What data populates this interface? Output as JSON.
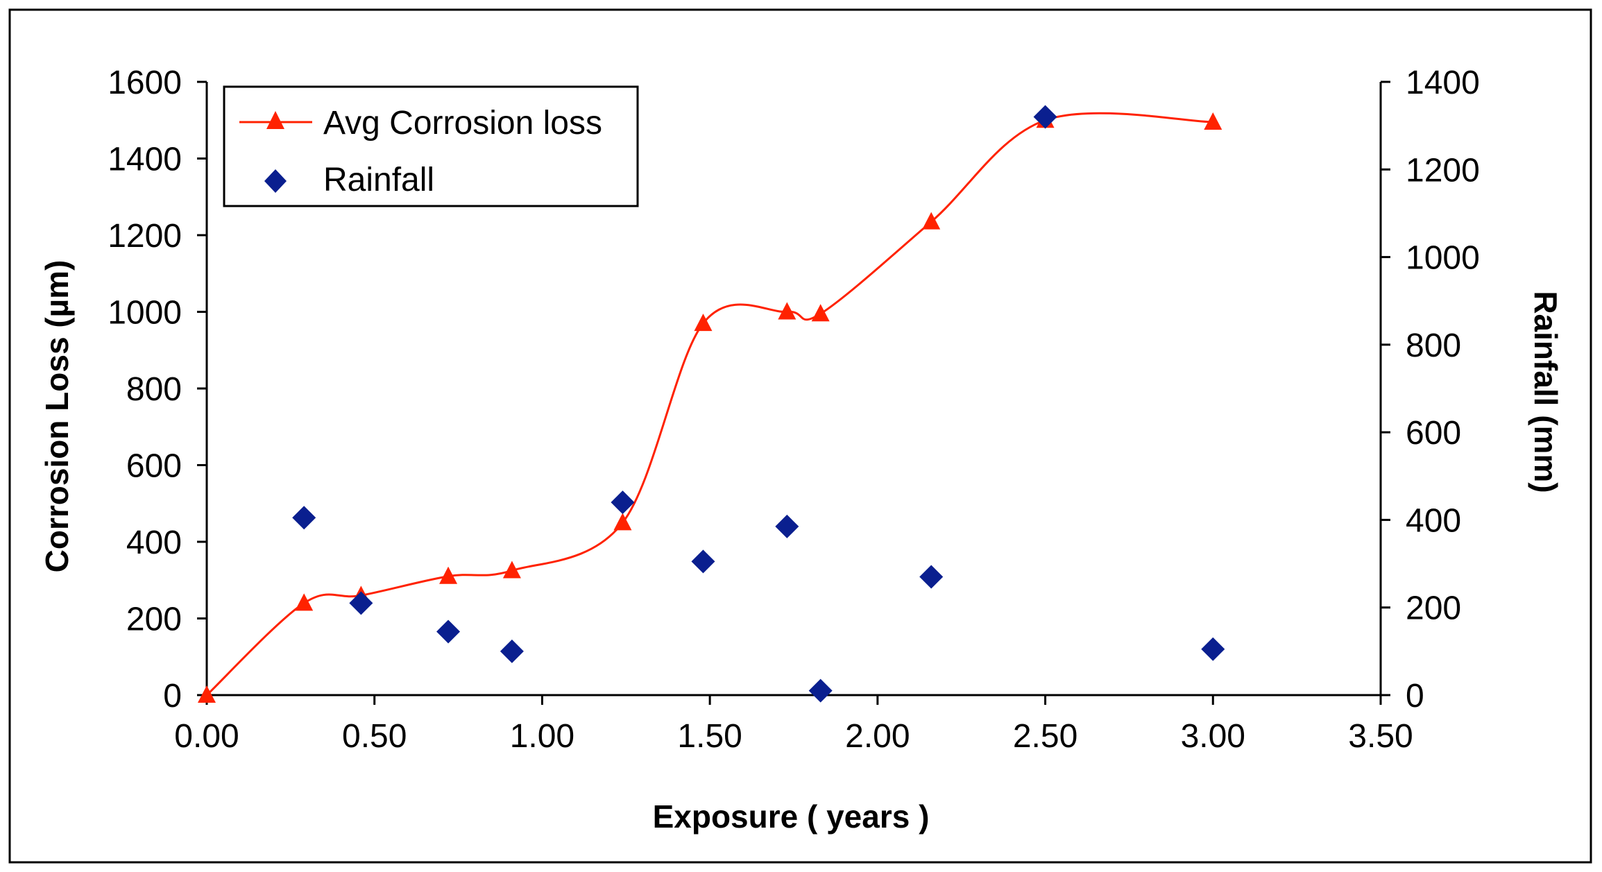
{
  "chart_data": {
    "type": "line",
    "title": "",
    "xlabel": "Exposure ( years )",
    "ylabel": "Corrosion Loss (µm)",
    "y2label": "Rainfall (mm)",
    "xlim": [
      0,
      3.5
    ],
    "ylim": [
      0,
      1600
    ],
    "y2lim": [
      0,
      1400
    ],
    "x_ticks": [
      "0.00",
      "0.50",
      "1.00",
      "1.50",
      "2.00",
      "2.50",
      "3.00",
      "3.50"
    ],
    "y_ticks": [
      "0",
      "200",
      "400",
      "600",
      "800",
      "1000",
      "1200",
      "1400",
      "1600"
    ],
    "y2_ticks": [
      "0",
      "200",
      "400",
      "600",
      "800",
      "1000",
      "1200",
      "1400"
    ],
    "grid": false,
    "legend_position": "top-left",
    "series": [
      {
        "name": "Avg Corrosion loss",
        "axis": "left",
        "marker": "triangle",
        "line": "smooth",
        "color": "#ff2200",
        "x": [
          0.0,
          0.29,
          0.46,
          0.72,
          0.91,
          1.24,
          1.48,
          1.73,
          1.83,
          2.16,
          2.5,
          3.0
        ],
        "values": [
          0,
          240,
          260,
          310,
          325,
          450,
          970,
          1000,
          995,
          1235,
          1500,
          1495
        ]
      },
      {
        "name": "Rainfall",
        "axis": "right",
        "marker": "diamond",
        "line": "none",
        "color": "#0a1f8f",
        "x": [
          0.29,
          0.46,
          0.72,
          0.91,
          1.24,
          1.48,
          1.73,
          1.83,
          2.16,
          2.5,
          3.0
        ],
        "values": [
          405,
          210,
          145,
          100,
          440,
          305,
          385,
          10,
          270,
          1320,
          105
        ]
      }
    ]
  }
}
